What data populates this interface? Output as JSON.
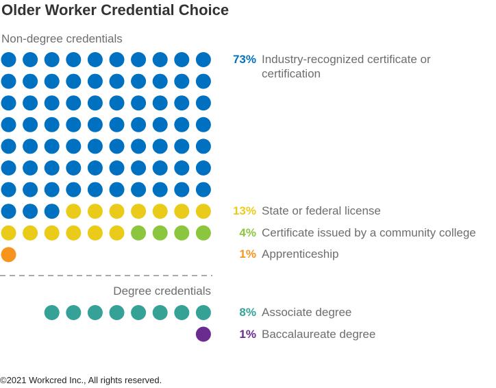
{
  "title": "Older Worker Credential Choice",
  "chart_data": {
    "type": "waffle",
    "groups": [
      {
        "label": "Non-degree credentials",
        "series": [
          {
            "name": "Industry-recognized certificate or certification",
            "color": "#0070c0",
            "value": 73,
            "value_label": "73%"
          },
          {
            "name": "State or federal license",
            "color": "#ebcb1a",
            "value": 13,
            "value_label": "13%"
          },
          {
            "name": "Certificate issued by a community college",
            "color": "#8cc63f",
            "value": 4,
            "value_label": "4%"
          },
          {
            "name": "Apprenticeship",
            "color": "#f7941d",
            "value": 1,
            "value_label": "1%"
          }
        ]
      },
      {
        "label": "Degree credentials",
        "series": [
          {
            "name": "Associate degree",
            "color": "#35a197",
            "value": 8,
            "value_label": "8%"
          },
          {
            "name": "Baccalaureate degree",
            "color": "#6a2c91",
            "value": 1,
            "value_label": "1%"
          }
        ]
      }
    ]
  },
  "footer": "©2021 Workcred Inc., All rights reserved."
}
